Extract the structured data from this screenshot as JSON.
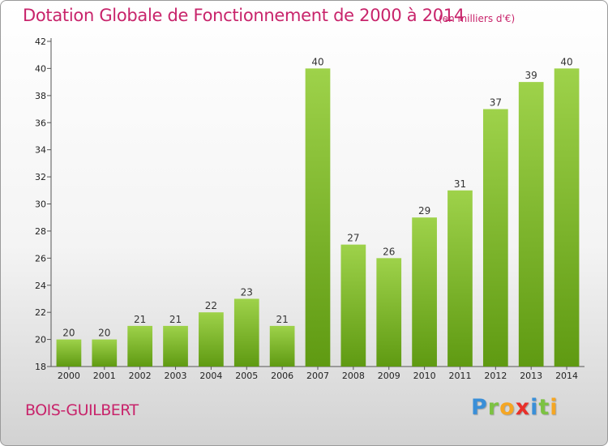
{
  "chart_data": {
    "type": "bar",
    "title": "Dotation Globale de Fonctionnement de 2000 à 2014",
    "subtitle": "(en milliers d'€)",
    "categories": [
      "2000",
      "2001",
      "2002",
      "2003",
      "2004",
      "2005",
      "2006",
      "2007",
      "2008",
      "2009",
      "2010",
      "2011",
      "2012",
      "2013",
      "2014"
    ],
    "values": [
      20,
      20,
      21,
      21,
      22,
      23,
      21,
      40,
      27,
      26,
      29,
      31,
      37,
      39,
      40
    ],
    "ylim": [
      18,
      42
    ],
    "yticks": [
      18,
      20,
      22,
      24,
      26,
      28,
      30,
      32,
      34,
      36,
      38,
      40,
      42
    ],
    "xlabel": "",
    "ylabel": "",
    "grid": false,
    "bar_color_top": "#9ed24a",
    "bar_color_bottom": "#5f9a12"
  },
  "footer": {
    "city": "BOIS-GUILBERT"
  },
  "logo": {
    "letters": [
      {
        "char": "P",
        "color": "#3a8fd8"
      },
      {
        "char": "r",
        "color": "#7cc242"
      },
      {
        "char": "o",
        "color": "#f5a623"
      },
      {
        "char": "x",
        "color": "#e8302a"
      },
      {
        "char": "i",
        "color": "#3a8fd8"
      },
      {
        "char": "t",
        "color": "#7cc242"
      },
      {
        "char": "i",
        "color": "#f5a623"
      }
    ]
  },
  "colors": {
    "accent": "#c8246b",
    "axis": "#555555"
  }
}
